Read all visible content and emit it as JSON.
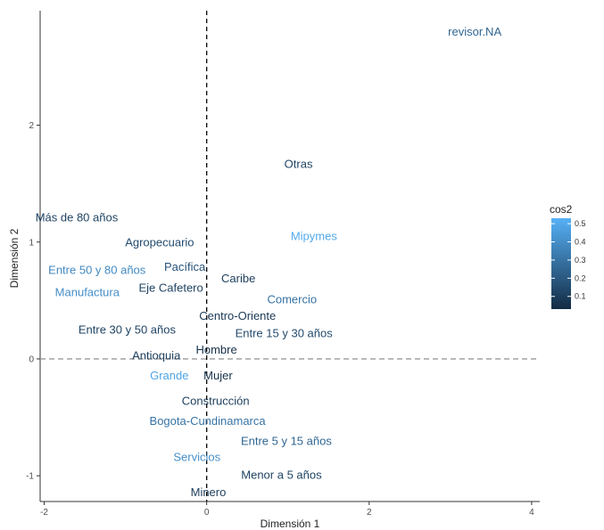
{
  "chart_data": {
    "type": "scatter",
    "title": "",
    "xlabel": "Dimensión 1",
    "ylabel": "Dimensión 2",
    "xlim": [
      -2.05,
      4.1
    ],
    "ylim": [
      -1.22,
      2.98
    ],
    "xticks": [
      "-2",
      "0",
      "2",
      "4"
    ],
    "xtick_values": [
      -2,
      0,
      2,
      4
    ],
    "yticks": [
      "-1",
      "0",
      "1",
      "2"
    ],
    "ytick_values": [
      -1,
      0,
      1,
      2
    ],
    "grid": false,
    "reference_lines": {
      "vertical_x": 0,
      "horizontal_y": 0
    },
    "legend": {
      "title": "cos2",
      "placement": "right",
      "ticks": [
        "0.1",
        "0.2",
        "0.3",
        "0.4",
        "0.5"
      ],
      "tick_values": [
        0.1,
        0.2,
        0.3,
        0.4,
        0.5
      ],
      "range": [
        0.03,
        0.53
      ],
      "color_low": "#132b43",
      "color_high": "#56b1f7"
    },
    "points": [
      {
        "label": "revisor.NA",
        "x": 3.3,
        "y": 2.8,
        "cos2": 0.25
      },
      {
        "label": "Otras",
        "x": 1.13,
        "y": 1.67,
        "cos2": 0.12
      },
      {
        "label": "Más de 80 años",
        "x": -1.6,
        "y": 1.21,
        "cos2": 0.12
      },
      {
        "label": "Mipymes",
        "x": 1.32,
        "y": 1.05,
        "cos2": 0.5
      },
      {
        "label": "Agropecuario",
        "x": -0.58,
        "y": 1.0,
        "cos2": 0.15
      },
      {
        "label": "Pacífica",
        "x": -0.27,
        "y": 0.79,
        "cos2": 0.18
      },
      {
        "label": "Entre 50 y 80 años",
        "x": -1.35,
        "y": 0.76,
        "cos2": 0.38
      },
      {
        "label": "Caribe",
        "x": 0.39,
        "y": 0.69,
        "cos2": 0.1
      },
      {
        "label": "Eje Cafetero",
        "x": -0.44,
        "y": 0.61,
        "cos2": 0.12
      },
      {
        "label": "Manufactura",
        "x": -1.47,
        "y": 0.57,
        "cos2": 0.4
      },
      {
        "label": "Comercio",
        "x": 1.05,
        "y": 0.51,
        "cos2": 0.3
      },
      {
        "label": "Centro-Oriente",
        "x": 0.38,
        "y": 0.37,
        "cos2": 0.08
      },
      {
        "label": "Entre 30 y 50 años",
        "x": -0.98,
        "y": 0.25,
        "cos2": 0.12
      },
      {
        "label": "Entre 15 y 30 años",
        "x": 0.95,
        "y": 0.22,
        "cos2": 0.15
      },
      {
        "label": "Hombre",
        "x": 0.12,
        "y": 0.08,
        "cos2": 0.05
      },
      {
        "label": "Antioquia",
        "x": -0.62,
        "y": 0.03,
        "cos2": 0.1
      },
      {
        "label": "Grande",
        "x": -0.46,
        "y": -0.14,
        "cos2": 0.48
      },
      {
        "label": "Mujer",
        "x": 0.14,
        "y": -0.14,
        "cos2": 0.05
      },
      {
        "label": "Construcción",
        "x": 0.11,
        "y": -0.36,
        "cos2": 0.1
      },
      {
        "label": "Bogota-Cundinamarca",
        "x": 0.01,
        "y": -0.53,
        "cos2": 0.3
      },
      {
        "label": "Entre 5 y 15 años",
        "x": 0.98,
        "y": -0.7,
        "cos2": 0.25
      },
      {
        "label": "Servicios",
        "x": -0.12,
        "y": -0.84,
        "cos2": 0.4
      },
      {
        "label": "Menor a 5 años",
        "x": 0.92,
        "y": -0.99,
        "cos2": 0.12
      },
      {
        "label": "Minero",
        "x": 0.02,
        "y": -1.14,
        "cos2": 0.1
      }
    ]
  }
}
